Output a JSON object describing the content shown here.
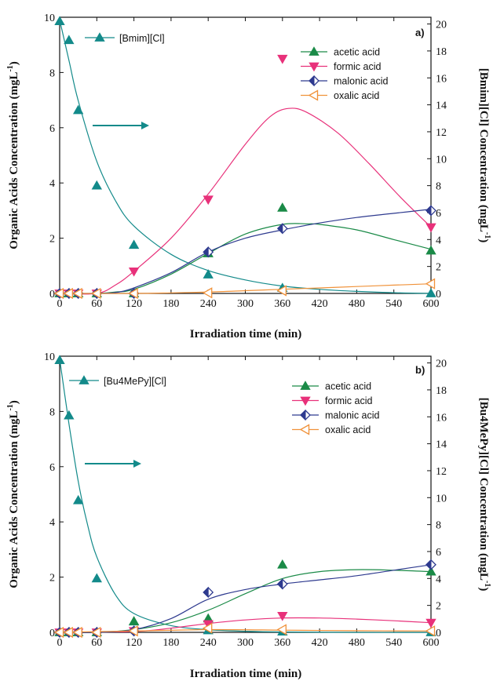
{
  "figure": {
    "panels": [
      "a)",
      "b)"
    ]
  },
  "chart_data": [
    {
      "type": "scatter",
      "panel_label": "a)",
      "xlabel": "Irradiation time (min)",
      "ylabel": "Organic Acids Concentration (mgL",
      "ylabel_sup": "-1",
      "ylabel_close": ")",
      "y2label": "[Bmim][Cl] Concentration (mgL",
      "y2label_sup": "-1",
      "y2label_close": ")",
      "xlim": [
        0,
        600
      ],
      "ylim": [
        0,
        10
      ],
      "y2lim": [
        0,
        20.5
      ],
      "xticks": [
        0,
        60,
        120,
        180,
        240,
        300,
        360,
        420,
        480,
        540,
        600
      ],
      "yticks": [
        0,
        2,
        4,
        6,
        8,
        10
      ],
      "y2ticks": [
        0,
        2,
        4,
        6,
        8,
        10,
        12,
        14,
        16,
        18,
        20
      ],
      "arrow_direction": "right",
      "series": [
        {
          "name": "[Bmim][Cl]",
          "axis": "right",
          "color": "#138a8a",
          "marker": "triangle-up-filled",
          "x": [
            0,
            15,
            30,
            60,
            120,
            240,
            360,
            600
          ],
          "y": [
            20.2,
            18.8,
            13.6,
            8.0,
            3.6,
            1.4,
            0.4,
            0.0
          ],
          "fit": [
            [
              0,
              20.3
            ],
            [
              15,
              17.3
            ],
            [
              30,
              14.3
            ],
            [
              60,
              9.8
            ],
            [
              90,
              6.9
            ],
            [
              120,
              5.0
            ],
            [
              180,
              2.9
            ],
            [
              240,
              1.7
            ],
            [
              300,
              1.0
            ],
            [
              360,
              0.55
            ],
            [
              420,
              0.3
            ],
            [
              480,
              0.15
            ],
            [
              540,
              0.05
            ],
            [
              600,
              0.0
            ]
          ]
        },
        {
          "name": "acetic acid",
          "axis": "left",
          "color": "#1a8a47",
          "marker": "triangle-up-filled",
          "x": [
            0,
            15,
            30,
            60,
            120,
            240,
            360,
            600
          ],
          "y": [
            0,
            0,
            0,
            0,
            0,
            1.45,
            3.1,
            1.55
          ],
          "fit": [
            [
              0,
              0
            ],
            [
              60,
              0
            ],
            [
              90,
              0.05
            ],
            [
              120,
              0.15
            ],
            [
              180,
              0.7
            ],
            [
              240,
              1.45
            ],
            [
              300,
              2.15
            ],
            [
              360,
              2.5
            ],
            [
              400,
              2.52
            ],
            [
              420,
              2.5
            ],
            [
              480,
              2.3
            ],
            [
              540,
              1.95
            ],
            [
              600,
              1.6
            ]
          ]
        },
        {
          "name": "formic acid",
          "axis": "left",
          "color": "#e8317a",
          "marker": "triangle-down-filled",
          "x": [
            0,
            15,
            30,
            60,
            120,
            240,
            360,
            600
          ],
          "y": [
            0,
            0,
            0,
            0,
            0.8,
            3.4,
            8.5,
            2.4
          ],
          "fit": [
            [
              0,
              0
            ],
            [
              60,
              0
            ],
            [
              90,
              0.3
            ],
            [
              120,
              0.8
            ],
            [
              180,
              2.0
            ],
            [
              240,
              3.6
            ],
            [
              300,
              5.4
            ],
            [
              340,
              6.4
            ],
            [
              370,
              6.7
            ],
            [
              400,
              6.55
            ],
            [
              450,
              5.8
            ],
            [
              500,
              4.7
            ],
            [
              550,
              3.5
            ],
            [
              600,
              2.4
            ]
          ]
        },
        {
          "name": "malonic acid",
          "axis": "left",
          "color": "#2e3a8f",
          "marker": "diamond-half",
          "x": [
            0,
            15,
            30,
            60,
            120,
            240,
            360,
            600
          ],
          "y": [
            0,
            0,
            0,
            0,
            0,
            1.5,
            2.35,
            3.0
          ],
          "fit": [
            [
              0,
              0
            ],
            [
              60,
              0
            ],
            [
              90,
              0.03
            ],
            [
              120,
              0.2
            ],
            [
              180,
              0.75
            ],
            [
              240,
              1.5
            ],
            [
              300,
              2.0
            ],
            [
              360,
              2.3
            ],
            [
              420,
              2.55
            ],
            [
              480,
              2.75
            ],
            [
              540,
              2.9
            ],
            [
              600,
              3.05
            ]
          ]
        },
        {
          "name": "oxalic acid",
          "axis": "left",
          "color": "#f0923a",
          "marker": "triangle-left-open",
          "x": [
            0,
            15,
            30,
            60,
            120,
            240,
            360,
            600
          ],
          "y": [
            0,
            0,
            0,
            0,
            0,
            0.02,
            0.1,
            0.35
          ],
          "fit": [
            [
              0,
              0
            ],
            [
              120,
              0
            ],
            [
              180,
              0.02
            ],
            [
              240,
              0.05
            ],
            [
              300,
              0.1
            ],
            [
              360,
              0.15
            ],
            [
              420,
              0.2
            ],
            [
              480,
              0.25
            ],
            [
              540,
              0.3
            ],
            [
              600,
              0.35
            ]
          ]
        }
      ]
    },
    {
      "type": "scatter",
      "panel_label": "b)",
      "xlabel": "Irradiation time (min)",
      "ylabel": "Organic Acids Concentration (mgL",
      "ylabel_sup": "-1",
      "ylabel_close": ")",
      "y2label": "[Bu4MePy][Cl] Concentration (mgL",
      "y2label_sup": "-1",
      "y2label_close": ")",
      "xlim": [
        0,
        600
      ],
      "ylim": [
        0,
        10
      ],
      "y2lim": [
        0,
        20.5
      ],
      "xticks": [
        0,
        60,
        120,
        180,
        240,
        300,
        360,
        420,
        480,
        540,
        600
      ],
      "yticks": [
        0,
        2,
        4,
        6,
        8,
        10
      ],
      "y2ticks": [
        0,
        2,
        4,
        6,
        8,
        10,
        12,
        14,
        16,
        18,
        20
      ],
      "arrow_direction": "right",
      "series": [
        {
          "name": "[Bu4MePy][Cl]",
          "axis": "right",
          "color": "#138a8a",
          "marker": "triangle-up-filled",
          "x": [
            0,
            15,
            30,
            60,
            120,
            240,
            360,
            600
          ],
          "y": [
            20.2,
            16.1,
            9.8,
            4.0,
            0.8,
            0.15,
            0.05,
            0.0
          ],
          "fit": [
            [
              0,
              20.3
            ],
            [
              15,
              15.5
            ],
            [
              30,
              11.2
            ],
            [
              45,
              8.0
            ],
            [
              60,
              5.6
            ],
            [
              90,
              2.8
            ],
            [
              120,
              1.4
            ],
            [
              180,
              0.5
            ],
            [
              240,
              0.2
            ],
            [
              300,
              0.08
            ],
            [
              360,
              0.03
            ],
            [
              480,
              0.0
            ],
            [
              600,
              0.0
            ]
          ]
        },
        {
          "name": "acetic acid",
          "axis": "left",
          "color": "#1a8a47",
          "marker": "triangle-up-filled",
          "x": [
            0,
            15,
            30,
            60,
            120,
            240,
            360,
            600
          ],
          "y": [
            0,
            0,
            0,
            0,
            0.4,
            0.5,
            2.45,
            2.2
          ],
          "fit": [
            [
              0,
              0
            ],
            [
              60,
              0
            ],
            [
              120,
              0.1
            ],
            [
              180,
              0.35
            ],
            [
              240,
              0.8
            ],
            [
              300,
              1.4
            ],
            [
              360,
              1.95
            ],
            [
              420,
              2.2
            ],
            [
              480,
              2.27
            ],
            [
              540,
              2.25
            ],
            [
              600,
              2.2
            ]
          ]
        },
        {
          "name": "formic acid",
          "axis": "left",
          "color": "#e8317a",
          "marker": "triangle-down-filled",
          "x": [
            0,
            15,
            30,
            60,
            120,
            240,
            360,
            600
          ],
          "y": [
            0,
            0,
            0,
            0,
            0.05,
            0.3,
            0.6,
            0.35
          ],
          "fit": [
            [
              0,
              0
            ],
            [
              120,
              0.03
            ],
            [
              180,
              0.15
            ],
            [
              240,
              0.32
            ],
            [
              300,
              0.45
            ],
            [
              360,
              0.52
            ],
            [
              420,
              0.52
            ],
            [
              480,
              0.48
            ],
            [
              540,
              0.42
            ],
            [
              600,
              0.35
            ]
          ]
        },
        {
          "name": "malonic acid",
          "axis": "left",
          "color": "#2e3a8f",
          "marker": "diamond-half",
          "x": [
            0,
            15,
            30,
            60,
            120,
            240,
            360,
            600
          ],
          "y": [
            0,
            0,
            0,
            0,
            0.05,
            1.45,
            1.75,
            2.45
          ],
          "fit": [
            [
              0,
              0
            ],
            [
              60,
              0
            ],
            [
              120,
              0.1
            ],
            [
              180,
              0.5
            ],
            [
              240,
              1.2
            ],
            [
              300,
              1.55
            ],
            [
              360,
              1.75
            ],
            [
              420,
              1.9
            ],
            [
              480,
              2.05
            ],
            [
              540,
              2.25
            ],
            [
              600,
              2.45
            ]
          ]
        },
        {
          "name": "oxalic acid",
          "axis": "left",
          "color": "#f0923a",
          "marker": "triangle-left-open",
          "x": [
            0,
            15,
            30,
            60,
            120,
            240,
            360,
            600
          ],
          "y": [
            0,
            0,
            0,
            0,
            0.05,
            0.15,
            0.1,
            0.05
          ],
          "fit": [
            [
              0,
              0
            ],
            [
              120,
              0.05
            ],
            [
              240,
              0.1
            ],
            [
              360,
              0.08
            ],
            [
              480,
              0.06
            ],
            [
              600,
              0.05
            ]
          ]
        }
      ]
    }
  ]
}
